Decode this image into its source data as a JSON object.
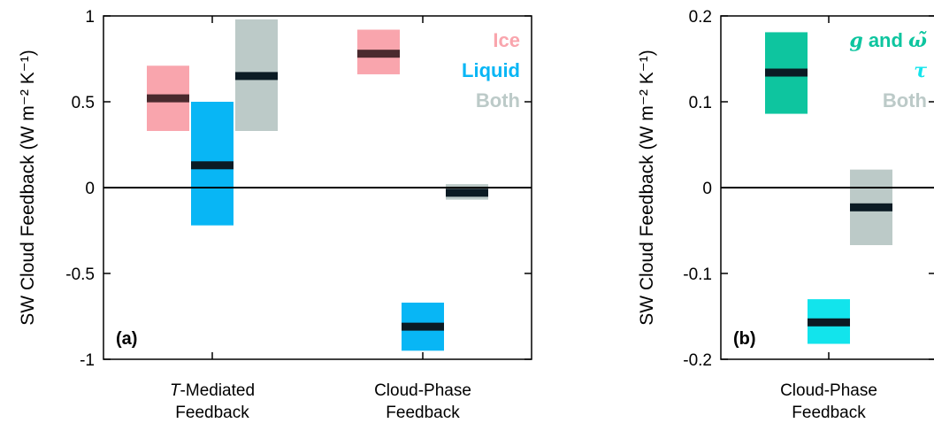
{
  "colors": {
    "ice": "#f9a5ad",
    "liquid": "#08b6f5",
    "both": "#bccac8",
    "g_and_omega": "#0ec59f",
    "tau": "#12e4ec",
    "median": "#0b1b24",
    "ice_median": "#4a2a2e"
  },
  "chart_data": [
    {
      "type": "bar",
      "panel_label": "(a)",
      "ylabel": "SW Cloud Feedback (W m⁻² K⁻¹)",
      "ylim": [
        -1,
        1
      ],
      "yticks": [
        -1,
        -0.5,
        0,
        0.5,
        1
      ],
      "ytick_labels": [
        "-1",
        "-0.5",
        "0",
        "0.5",
        "1"
      ],
      "categories": [
        {
          "line1_italic": "T",
          "line1_rest": "-Mediated",
          "line2": "Feedback"
        },
        {
          "line1_italic": "",
          "line1_rest": "Cloud-Phase",
          "line2": "Feedback"
        }
      ],
      "legend": [
        {
          "label": "Ice",
          "color_key": "ice"
        },
        {
          "label": "Liquid",
          "color_key": "liquid"
        },
        {
          "label": "Both",
          "color_key": "both"
        }
      ],
      "series": [
        {
          "name": "Ice",
          "color_key": "ice",
          "boxes": [
            {
              "category": 0,
              "low": 0.33,
              "high": 0.71,
              "median": 0.52
            },
            {
              "category": 1,
              "low": 0.66,
              "high": 0.92,
              "median": 0.78
            }
          ]
        },
        {
          "name": "Liquid",
          "color_key": "liquid",
          "boxes": [
            {
              "category": 0,
              "low": -0.22,
              "high": 0.5,
              "median": 0.13
            },
            {
              "category": 1,
              "low": -0.95,
              "high": -0.67,
              "median": -0.81
            }
          ]
        },
        {
          "name": "Both",
          "color_key": "both",
          "boxes": [
            {
              "category": 0,
              "low": 0.33,
              "high": 0.98,
              "median": 0.65
            },
            {
              "category": 1,
              "low": -0.07,
              "high": 0.02,
              "median": -0.03
            }
          ]
        }
      ]
    },
    {
      "type": "bar",
      "panel_label": "(b)",
      "ylabel": "SW Cloud Feedback (W m⁻² K⁻¹)",
      "ylim": [
        -0.2,
        0.2
      ],
      "yticks": [
        -0.2,
        -0.1,
        0,
        0.1,
        0.2
      ],
      "ytick_labels": [
        "-0.2",
        "-0.1",
        "0",
        "0.1",
        "0.2"
      ],
      "categories": [
        {
          "line1_italic": "",
          "line1_rest": "Cloud-Phase",
          "line2": "Feedback"
        }
      ],
      "legend": [
        {
          "label_italic": "g",
          "label_mid": " and ",
          "label_tail": "ω̃",
          "label_tail_italic": true,
          "color_key": "g_and_omega"
        },
        {
          "label_italic": "τ",
          "label_mid": "",
          "label_tail": "",
          "label_tail_italic": false,
          "color_key": "tau"
        },
        {
          "label_italic": "",
          "label_mid": "Both",
          "label_tail": "",
          "label_tail_italic": false,
          "color_key": "both"
        }
      ],
      "series": [
        {
          "name": "g and ω̃",
          "color_key": "g_and_omega",
          "boxes": [
            {
              "category": 0,
              "low": 0.086,
              "high": 0.181,
              "median": 0.134
            }
          ]
        },
        {
          "name": "τ",
          "color_key": "tau",
          "boxes": [
            {
              "category": 0,
              "low": -0.182,
              "high": -0.13,
              "median": -0.157
            }
          ]
        },
        {
          "name": "Both",
          "color_key": "both",
          "boxes": [
            {
              "category": 0,
              "low": -0.067,
              "high": 0.021,
              "median": -0.023
            }
          ]
        }
      ]
    }
  ]
}
